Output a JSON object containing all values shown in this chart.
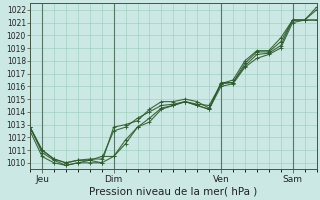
{
  "title": "",
  "xlabel": "Pression niveau de la mer( hPa )",
  "ylabel": "",
  "bg_color": "#cce8e4",
  "grid_color": "#99ccbb",
  "line_color": "#2d5a2d",
  "marker_color": "#2d5a2d",
  "ylim": [
    1009.5,
    1022.5
  ],
  "xlim": [
    0,
    96
  ],
  "ytick_start": 1010,
  "ytick_end": 1022,
  "ytick_step": 1,
  "xtick_positions": [
    4,
    28,
    64,
    88
  ],
  "xtick_labels": [
    "Jeu",
    "Dim",
    "Ven",
    "Sam"
  ],
  "vline_positions": [
    4,
    28,
    64,
    88
  ],
  "series": [
    {
      "x": [
        0,
        4,
        8,
        12,
        16,
        20,
        24,
        28,
        32,
        36,
        40,
        44,
        48,
        52,
        56,
        60,
        64,
        68,
        72,
        76,
        80,
        84,
        88,
        92,
        96
      ],
      "y": [
        1012.8,
        1010.8,
        1010.2,
        1009.8,
        1010.0,
        1010.2,
        1010.5,
        1010.5,
        1011.5,
        1012.8,
        1013.5,
        1014.3,
        1014.5,
        1014.8,
        1014.6,
        1014.5,
        1016.2,
        1016.3,
        1017.6,
        1018.5,
        1018.6,
        1019.2,
        1021.2,
        1021.2,
        1022.2
      ]
    },
    {
      "x": [
        0,
        4,
        8,
        12,
        16,
        20,
        24,
        28,
        32,
        36,
        40,
        44,
        48,
        52,
        56,
        60,
        64,
        68,
        72,
        76,
        80,
        84,
        88,
        92,
        96
      ],
      "y": [
        1012.8,
        1011.0,
        1010.3,
        1010.0,
        1010.2,
        1010.3,
        1010.3,
        1012.5,
        1012.8,
        1013.5,
        1014.0,
        1014.5,
        1014.6,
        1014.8,
        1014.5,
        1014.2,
        1016.3,
        1016.3,
        1017.8,
        1018.7,
        1018.7,
        1019.5,
        1021.2,
        1021.2,
        1021.2
      ]
    },
    {
      "x": [
        0,
        4,
        8,
        12,
        16,
        20,
        24,
        28,
        32,
        36,
        40,
        44,
        48,
        52,
        56,
        60,
        64,
        68,
        72,
        76,
        80,
        84,
        88,
        92,
        96
      ],
      "y": [
        1012.8,
        1011.0,
        1010.3,
        1010.0,
        1010.2,
        1010.2,
        1010.0,
        1012.8,
        1013.0,
        1013.3,
        1014.2,
        1014.8,
        1014.8,
        1015.0,
        1014.8,
        1014.3,
        1016.2,
        1016.5,
        1018.0,
        1018.8,
        1018.8,
        1019.8,
        1021.2,
        1021.2,
        1021.2
      ]
    },
    {
      "x": [
        0,
        4,
        8,
        12,
        16,
        20,
        24,
        28,
        32,
        36,
        40,
        44,
        48,
        52,
        56,
        60,
        64,
        68,
        72,
        76,
        80,
        84,
        88,
        92,
        96
      ],
      "y": [
        1012.5,
        1010.5,
        1010.0,
        1009.8,
        1010.0,
        1010.0,
        1010.0,
        1010.5,
        1011.8,
        1012.8,
        1013.2,
        1014.2,
        1014.5,
        1014.8,
        1014.5,
        1014.2,
        1016.0,
        1016.2,
        1017.5,
        1018.2,
        1018.5,
        1019.0,
        1021.0,
        1021.2,
        1022.0
      ]
    }
  ]
}
